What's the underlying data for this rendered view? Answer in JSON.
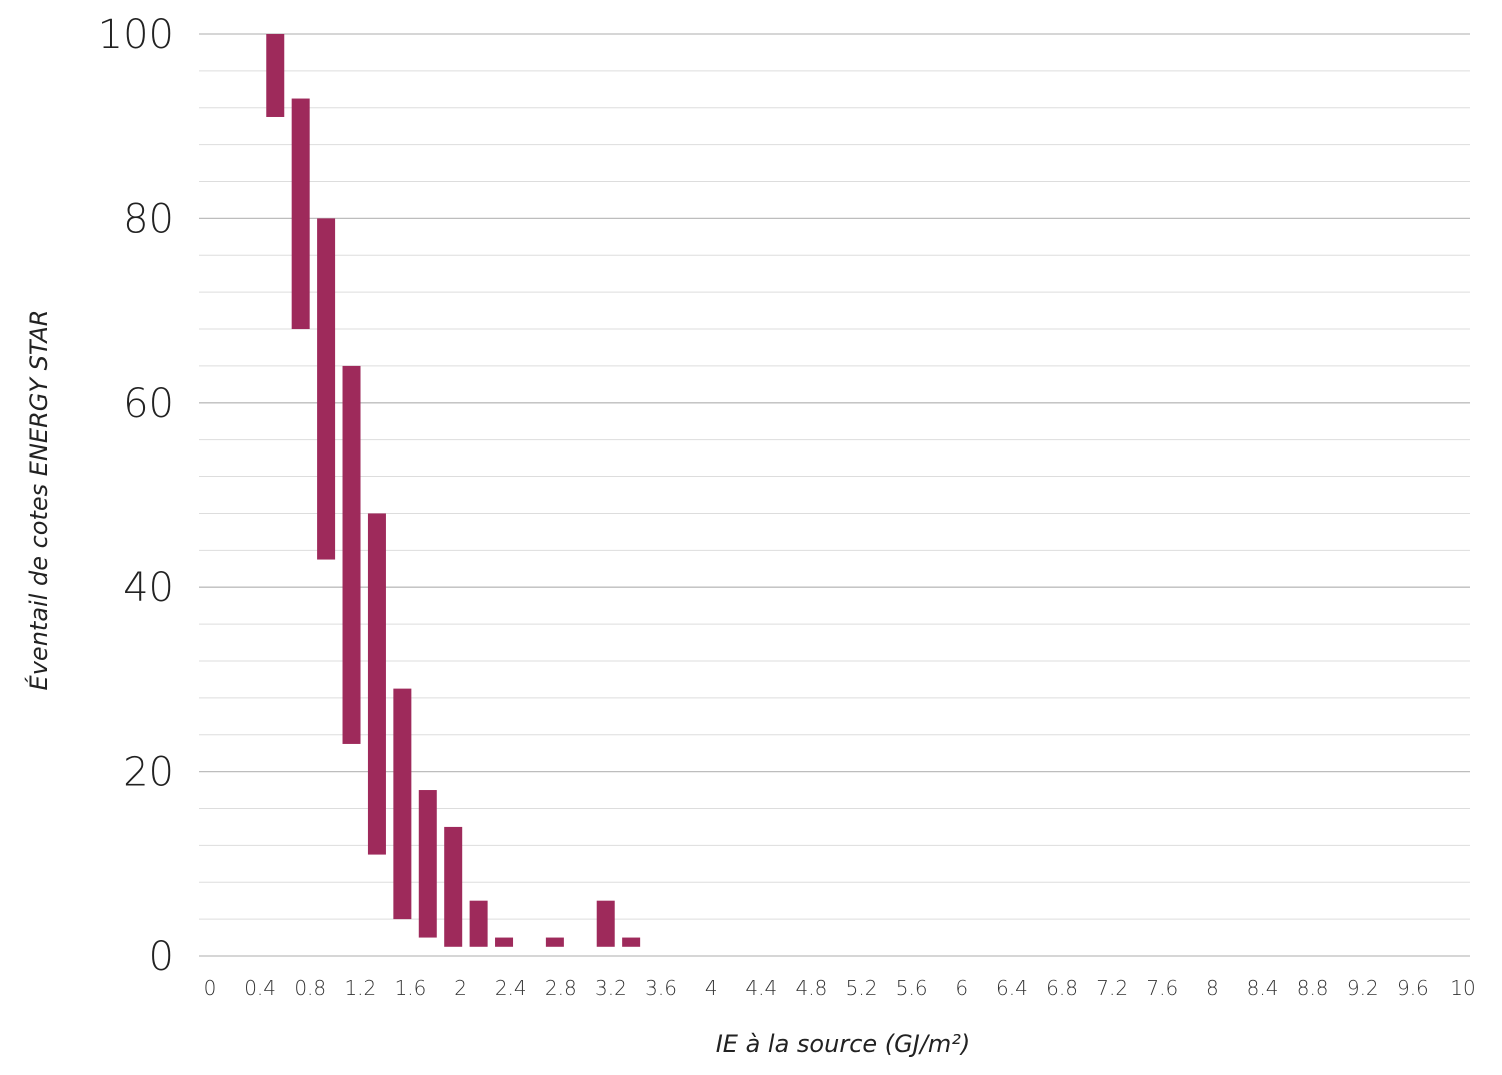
{
  "chart_data": {
    "type": "bar",
    "subtype": "floating-range",
    "xlabel": "IE à la source (GJ/m²)",
    "ylabel": "Éventail de cotes ENERGY STAR",
    "xlim": [
      0,
      10
    ],
    "ylim": [
      0,
      100
    ],
    "x_ticks": [
      "0",
      "0.4",
      "0.8",
      "1.2",
      "1.6",
      "2",
      "2.4",
      "2.8",
      "3.2",
      "3.6",
      "4",
      "4.4",
      "4.8",
      "5.2",
      "5.6",
      "6",
      "6.4",
      "6.8",
      "7.2",
      "7.6",
      "8",
      "8.4",
      "8.8",
      "9.2",
      "9.6",
      "10"
    ],
    "y_ticks": [
      "0",
      "20",
      "40",
      "60",
      "80",
      "100"
    ],
    "grid": {
      "major_step": 20,
      "minor_step": 4
    },
    "bar_color": "#9e2a5b",
    "grid_color": "#cccccc",
    "bars": [
      {
        "x": 0.6,
        "low": 91,
        "high": 100
      },
      {
        "x": 0.8,
        "low": 68,
        "high": 93
      },
      {
        "x": 1.0,
        "low": 43,
        "high": 80
      },
      {
        "x": 1.2,
        "low": 23,
        "high": 64
      },
      {
        "x": 1.4,
        "low": 11,
        "high": 48
      },
      {
        "x": 1.6,
        "low": 4,
        "high": 29
      },
      {
        "x": 1.8,
        "low": 2,
        "high": 18
      },
      {
        "x": 2.0,
        "low": 1,
        "high": 14
      },
      {
        "x": 2.2,
        "low": 1,
        "high": 6
      },
      {
        "x": 2.4,
        "low": 1,
        "high": 2
      },
      {
        "x": 2.8,
        "low": 1,
        "high": 2
      },
      {
        "x": 3.2,
        "low": 1,
        "high": 6
      },
      {
        "x": 3.4,
        "low": 1,
        "high": 2
      }
    ]
  }
}
